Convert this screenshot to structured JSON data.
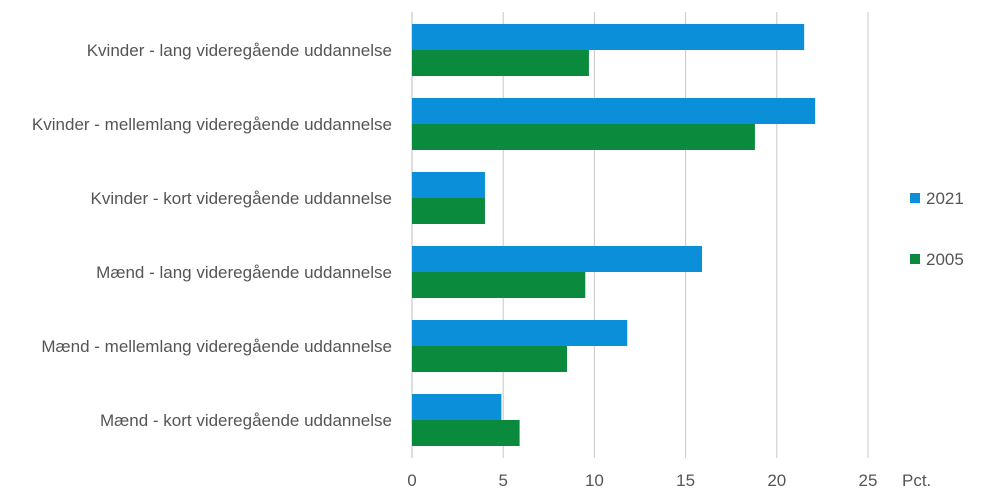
{
  "chart_data": {
    "type": "bar",
    "orientation": "horizontal",
    "categories": [
      "Kvinder - lang videregående uddannelse",
      "Kvinder - mellemlang videregående uddannelse",
      "Kvinder - kort videregående uddannelse",
      "Mænd - lang videregående uddannelse",
      "Mænd - mellemlang videregående uddannelse",
      "Mænd - kort videregående uddannelse"
    ],
    "series": [
      {
        "name": "2021",
        "color": "#0a8fd8",
        "values": [
          21.5,
          22.1,
          4.0,
          15.9,
          11.8,
          4.9
        ]
      },
      {
        "name": "2005",
        "color": "#0a8a3c",
        "values": [
          9.7,
          18.8,
          4.0,
          9.5,
          8.5,
          5.9
        ]
      }
    ],
    "xticks": [
      0,
      5,
      10,
      15,
      20,
      25
    ],
    "xlim": [
      0,
      25
    ],
    "xunit": "Pct.",
    "grid": "vertical",
    "legend_position": "right"
  }
}
